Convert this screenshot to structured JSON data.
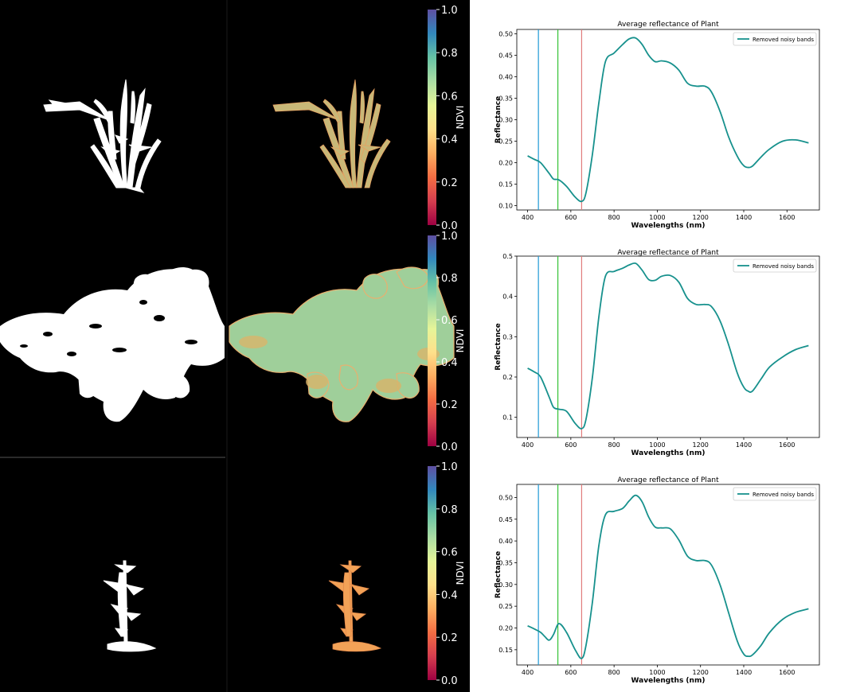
{
  "colorbar": {
    "label": "NDVI",
    "ticks": [
      "0.0",
      "0.2",
      "0.4",
      "0.6",
      "0.8",
      "1.0"
    ],
    "stops": [
      "#9e0142",
      "#d53e4f",
      "#f46d43",
      "#fdae61",
      "#fee08b",
      "#e6f598",
      "#abdda4",
      "#66c2a5",
      "#3288bd",
      "#5e4fa2"
    ]
  },
  "colors": {
    "line": "#17918d",
    "blue_marker": "#1f9ad6",
    "green_marker": "#34c236",
    "red_marker": "#e07b7b",
    "mask": "#ffffff",
    "plant_row1": "#c8b878",
    "plant_row2": "#9fcf9a",
    "plant_row3": "#f2a257"
  },
  "plant_masks": {
    "row1": "Grass-like plant",
    "row2": "Broad-leaf canopy",
    "row3": "Small upright plant"
  },
  "chart_data": [
    {
      "type": "line",
      "title": "Average reflectance of Plant",
      "xlabel": "Wavelengths (nm)",
      "ylabel": "Reflectance",
      "xlim": [
        350,
        1750
      ],
      "ylim": [
        0.09,
        0.51
      ],
      "xticks": [
        400,
        600,
        800,
        1000,
        1200,
        1400,
        1600
      ],
      "xtick_labels": [
        "400",
        "600",
        "800",
        "1000",
        "1200",
        "1400",
        "1600"
      ],
      "yticks": [
        0.1,
        0.15,
        0.2,
        0.25,
        0.3,
        0.35,
        0.4,
        0.45,
        0.5
      ],
      "ytick_labels": [
        "0.10",
        "0.15",
        "0.20",
        "0.25",
        "0.30",
        "0.35",
        "0.40",
        "0.45",
        "0.50"
      ],
      "vlines": [
        450,
        540,
        650
      ],
      "legend": {
        "position": "top-right",
        "label": "Removed noisy bands"
      },
      "series": [
        {
          "name": "Removed noisy bands",
          "x": [
            400,
            430,
            460,
            500,
            520,
            545,
            580,
            620,
            650,
            670,
            700,
            730,
            760,
            800,
            840,
            870,
            900,
            930,
            960,
            990,
            1020,
            1060,
            1100,
            1140,
            1180,
            1220,
            1250,
            1290,
            1330,
            1370,
            1400,
            1420,
            1440,
            1480,
            1520,
            1580,
            1640,
            1700
          ],
          "y": [
            0.216,
            0.208,
            0.2,
            0.175,
            0.162,
            0.16,
            0.145,
            0.12,
            0.11,
            0.13,
            0.22,
            0.34,
            0.435,
            0.455,
            0.475,
            0.488,
            0.49,
            0.475,
            0.45,
            0.435,
            0.437,
            0.432,
            0.415,
            0.385,
            0.378,
            0.378,
            0.365,
            0.32,
            0.26,
            0.215,
            0.193,
            0.189,
            0.192,
            0.213,
            0.232,
            0.25,
            0.253,
            0.246
          ]
        }
      ]
    },
    {
      "type": "line",
      "title": "Average reflectance of Plant",
      "xlabel": "Wavelengths (nm)",
      "ylabel": "Reflectance",
      "xlim": [
        350,
        1750
      ],
      "ylim": [
        0.05,
        0.5
      ],
      "xticks": [
        400,
        600,
        800,
        1000,
        1200,
        1400,
        1600
      ],
      "xtick_labels": [
        "400",
        "600",
        "800",
        "1000",
        "1200",
        "1400",
        "1600"
      ],
      "yticks": [
        0.1,
        0.2,
        0.3,
        0.4,
        0.5
      ],
      "ytick_labels": [
        "0.1",
        "0.2",
        "0.3",
        "0.4",
        "0.5"
      ],
      "vlines": [
        450,
        540,
        650
      ],
      "legend": {
        "position": "top-right",
        "label": "Removed noisy bands"
      },
      "series": [
        {
          "name": "Removed noisy bands",
          "x": [
            400,
            430,
            460,
            500,
            520,
            545,
            580,
            620,
            650,
            670,
            700,
            730,
            760,
            800,
            840,
            870,
            900,
            930,
            960,
            990,
            1020,
            1060,
            1100,
            1140,
            1180,
            1220,
            1250,
            1290,
            1330,
            1370,
            1400,
            1420,
            1440,
            1480,
            1520,
            1580,
            1640,
            1700
          ],
          "y": [
            0.222,
            0.213,
            0.2,
            0.15,
            0.125,
            0.12,
            0.115,
            0.085,
            0.072,
            0.095,
            0.2,
            0.35,
            0.45,
            0.462,
            0.47,
            0.478,
            0.482,
            0.465,
            0.442,
            0.44,
            0.45,
            0.452,
            0.435,
            0.395,
            0.38,
            0.38,
            0.375,
            0.34,
            0.28,
            0.21,
            0.175,
            0.165,
            0.165,
            0.195,
            0.225,
            0.25,
            0.268,
            0.278
          ]
        }
      ]
    },
    {
      "type": "line",
      "title": "Average reflectance of Plant",
      "xlabel": "Wavelengths (nm)",
      "ylabel": "Reflectance",
      "xlim": [
        350,
        1750
      ],
      "ylim": [
        0.115,
        0.53
      ],
      "xticks": [
        400,
        600,
        800,
        1000,
        1200,
        1400,
        1600
      ],
      "xtick_labels": [
        "400",
        "600",
        "800",
        "1000",
        "1200",
        "1400",
        "1600"
      ],
      "yticks": [
        0.15,
        0.2,
        0.25,
        0.3,
        0.35,
        0.4,
        0.45,
        0.5
      ],
      "ytick_labels": [
        "0.15",
        "0.20",
        "0.25",
        "0.30",
        "0.35",
        "0.40",
        "0.45",
        "0.50"
      ],
      "vlines": [
        450,
        540,
        650
      ],
      "legend": {
        "position": "top-right",
        "label": "Removed noisy bands"
      },
      "series": [
        {
          "name": "Removed noisy bands",
          "x": [
            400,
            430,
            460,
            480,
            500,
            520,
            545,
            580,
            620,
            650,
            670,
            700,
            730,
            760,
            800,
            840,
            870,
            900,
            930,
            960,
            990,
            1020,
            1060,
            1100,
            1140,
            1180,
            1220,
            1250,
            1290,
            1330,
            1370,
            1400,
            1420,
            1440,
            1480,
            1520,
            1580,
            1640,
            1700
          ],
          "y": [
            0.205,
            0.198,
            0.19,
            0.18,
            0.172,
            0.185,
            0.21,
            0.19,
            0.15,
            0.13,
            0.16,
            0.26,
            0.39,
            0.46,
            0.468,
            0.475,
            0.492,
            0.505,
            0.49,
            0.455,
            0.432,
            0.43,
            0.428,
            0.402,
            0.365,
            0.355,
            0.355,
            0.345,
            0.3,
            0.235,
            0.17,
            0.14,
            0.135,
            0.138,
            0.16,
            0.19,
            0.22,
            0.236,
            0.244
          ]
        }
      ]
    }
  ]
}
